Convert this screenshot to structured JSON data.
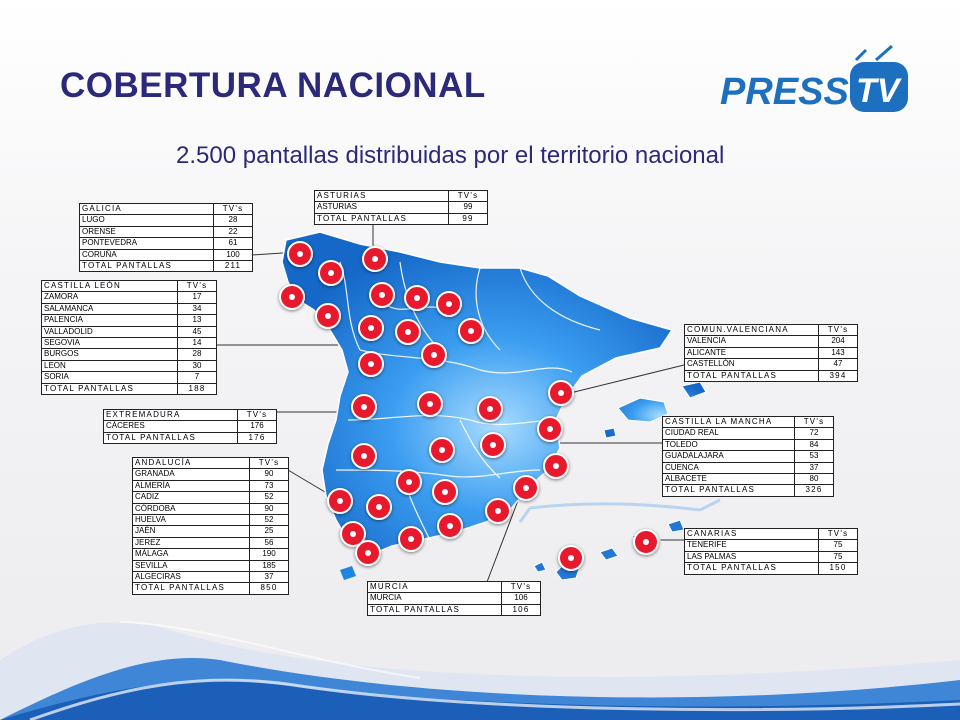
{
  "title": "COBERTURA NACIONAL",
  "subtitle": "2.500 pantallas distribuidas por el territorio nacional",
  "logo": {
    "text_press": "PRESS",
    "text_tv": "TV"
  },
  "colors": {
    "title": "#2b2a7a",
    "map_blue": "#1f86e0",
    "pin_red": "#e8192c",
    "logo_blue": "#1d6fc0"
  },
  "tables": {
    "asturias": {
      "header": [
        "ASTURIAS",
        "TV's"
      ],
      "rows": [
        [
          "ASTURIAS",
          "99"
        ]
      ],
      "total": [
        "TOTAL PANTALLAS",
        "99"
      ]
    },
    "galicia": {
      "header": [
        "GALICIA",
        "TV's"
      ],
      "rows": [
        [
          "LUGO",
          "28"
        ],
        [
          "ORENSE",
          "22"
        ],
        [
          "PONTEVEDRA",
          "61"
        ],
        [
          "CORUÑA",
          "100"
        ]
      ],
      "total": [
        "TOTAL PANTALLAS",
        "211"
      ]
    },
    "castilla_leon": {
      "header": [
        "CASTILLA LEÓN",
        "TV's"
      ],
      "rows": [
        [
          "ZAMORA",
          "17"
        ],
        [
          "SALAMANCA",
          "34"
        ],
        [
          "PALENCIA",
          "13"
        ],
        [
          "VALLADOLID",
          "45"
        ],
        [
          "SEGOVIA",
          "14"
        ],
        [
          "BURGOS",
          "28"
        ],
        [
          "LEON",
          "30"
        ],
        [
          "SORIA",
          "7"
        ]
      ],
      "total": [
        "TOTAL PANTALLAS",
        "188"
      ]
    },
    "extremadura": {
      "header": [
        "EXTREMADURA",
        "TV's"
      ],
      "rows": [
        [
          "CÁCERES",
          "176"
        ]
      ],
      "total": [
        "TOTAL PANTALLAS",
        "176"
      ]
    },
    "andalucia": {
      "header": [
        "ANDALUCÍA",
        "TV's"
      ],
      "rows": [
        [
          "GRANADA",
          "90"
        ],
        [
          "ALMERÍA",
          "73"
        ],
        [
          "CADIZ",
          "52"
        ],
        [
          "CÓRDOBA",
          "90"
        ],
        [
          "HUELVA",
          "52"
        ],
        [
          "JAÉN",
          "25"
        ],
        [
          "JEREZ",
          "56"
        ],
        [
          "MÁLAGA",
          "190"
        ],
        [
          "SEVILLA",
          "185"
        ],
        [
          "ALGECIRAS",
          "37"
        ]
      ],
      "total": [
        "TOTAL PANTALLAS",
        "850"
      ]
    },
    "comun_valenciana": {
      "header": [
        "COMUN.VALENCIANA",
        "TV's"
      ],
      "rows": [
        [
          "VALENCIA",
          "204"
        ],
        [
          "ALICANTE",
          "143"
        ],
        [
          "CASTELLÓN",
          "47"
        ]
      ],
      "total": [
        "TOTAL PANTALLAS",
        "394"
      ]
    },
    "castilla_mancha": {
      "header": [
        "CASTILLA LA MANCHA",
        "TV's"
      ],
      "rows": [
        [
          "CIUDAD REAL",
          "72"
        ],
        [
          "TOLEDO",
          "84"
        ],
        [
          "GUADALAJARA",
          "53"
        ],
        [
          "CUENCA",
          "37"
        ],
        [
          "ALBACETE",
          "80"
        ]
      ],
      "total": [
        "TOTAL PANTALLAS",
        "326"
      ]
    },
    "canarias": {
      "header": [
        "CANARIAS",
        "TV's"
      ],
      "rows": [
        [
          "TENERIFE",
          "75"
        ],
        [
          "LAS PALMAS",
          "75"
        ]
      ],
      "total": [
        "TOTAL PANTALLAS",
        "150"
      ]
    },
    "murcia": {
      "header": [
        "MURCIA",
        "TV's"
      ],
      "rows": [
        [
          "MURCIA",
          "106"
        ]
      ],
      "total": [
        "TOTAL PANTALLAS",
        "106"
      ]
    }
  }
}
